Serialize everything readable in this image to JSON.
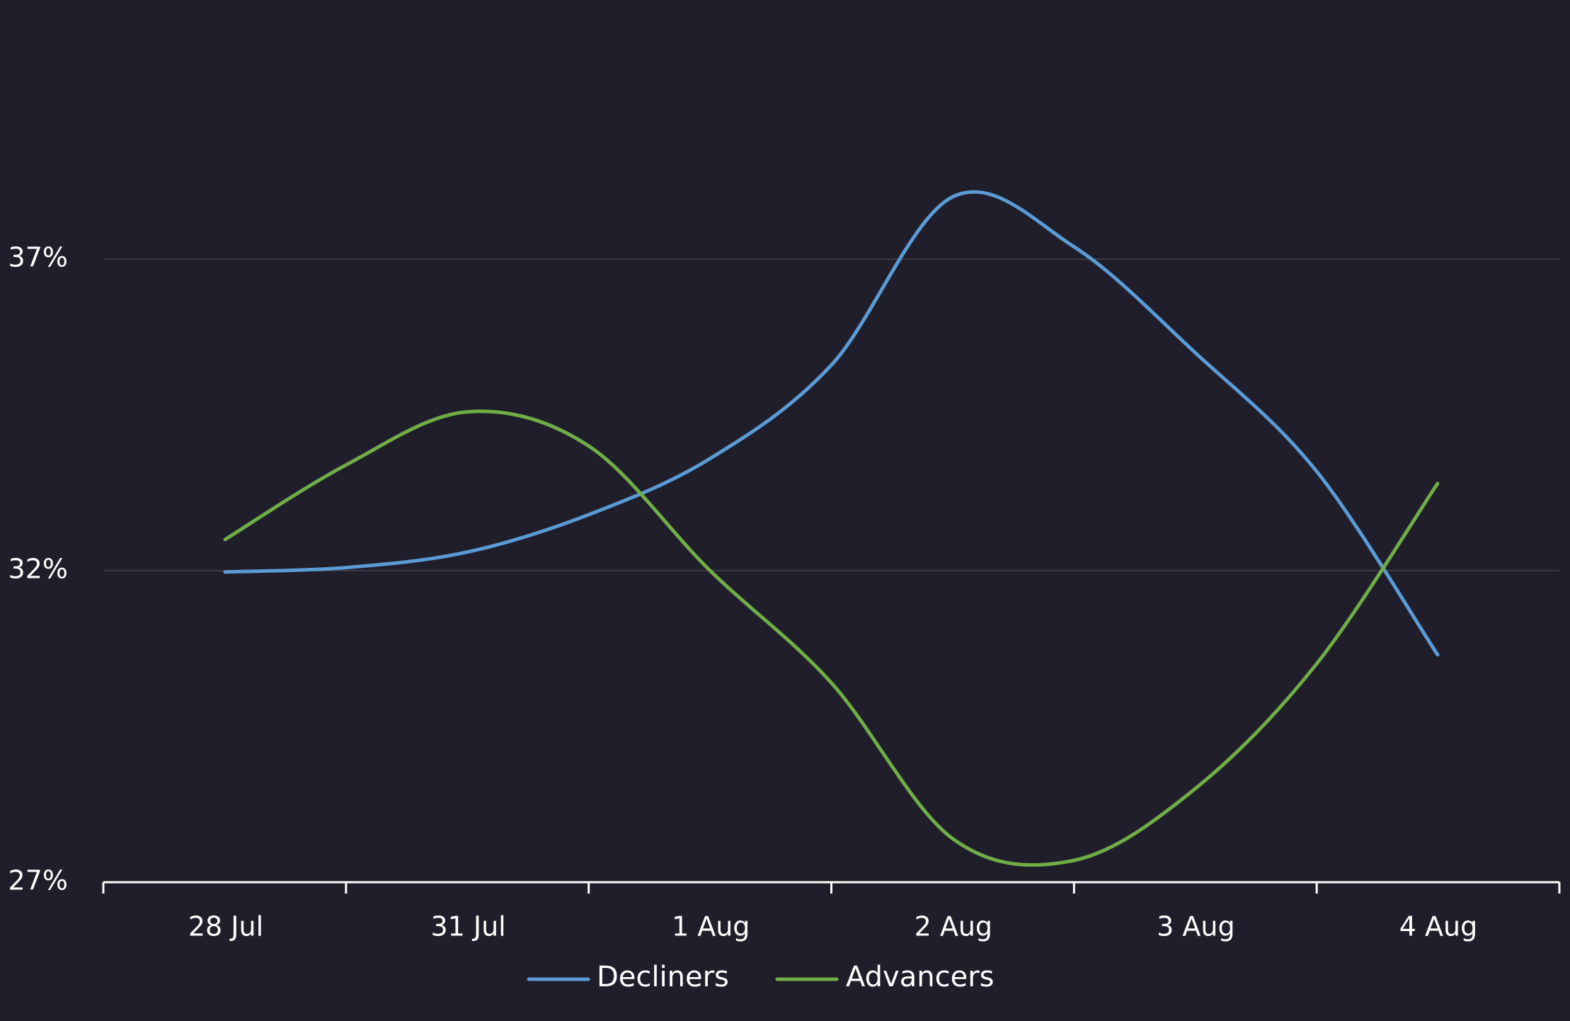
{
  "chart_data": {
    "type": "line",
    "categories": [
      "28 Jul",
      "31 Jul",
      "1 Aug",
      "2 Aug",
      "3 Aug",
      "4 Aug"
    ],
    "y_ticks": [
      "27%",
      "32%",
      "37%"
    ],
    "ylim": [
      27,
      40
    ],
    "grid": true,
    "legend_position": "bottom",
    "series": [
      {
        "name": "Decliners",
        "color": "#5b9bd5",
        "points": [
          [
            0,
            31.98
          ],
          [
            0.5,
            32.05
          ],
          [
            1,
            32.3
          ],
          [
            1.5,
            32.9
          ],
          [
            2,
            33.8
          ],
          [
            2.5,
            35.3
          ],
          [
            3,
            38.0
          ],
          [
            3.5,
            37.2
          ],
          [
            4,
            35.5
          ],
          [
            4.5,
            33.6
          ],
          [
            5,
            30.65
          ]
        ]
      },
      {
        "name": "Advancers",
        "color": "#70ad47",
        "points": [
          [
            0,
            32.5
          ],
          [
            0.5,
            33.7
          ],
          [
            1,
            34.55
          ],
          [
            1.5,
            34.0
          ],
          [
            2,
            32.0
          ],
          [
            2.5,
            30.2
          ],
          [
            3,
            27.7
          ],
          [
            3.5,
            27.35
          ],
          [
            4,
            28.5
          ],
          [
            4.5,
            30.5
          ],
          [
            5,
            33.4
          ]
        ]
      }
    ]
  }
}
